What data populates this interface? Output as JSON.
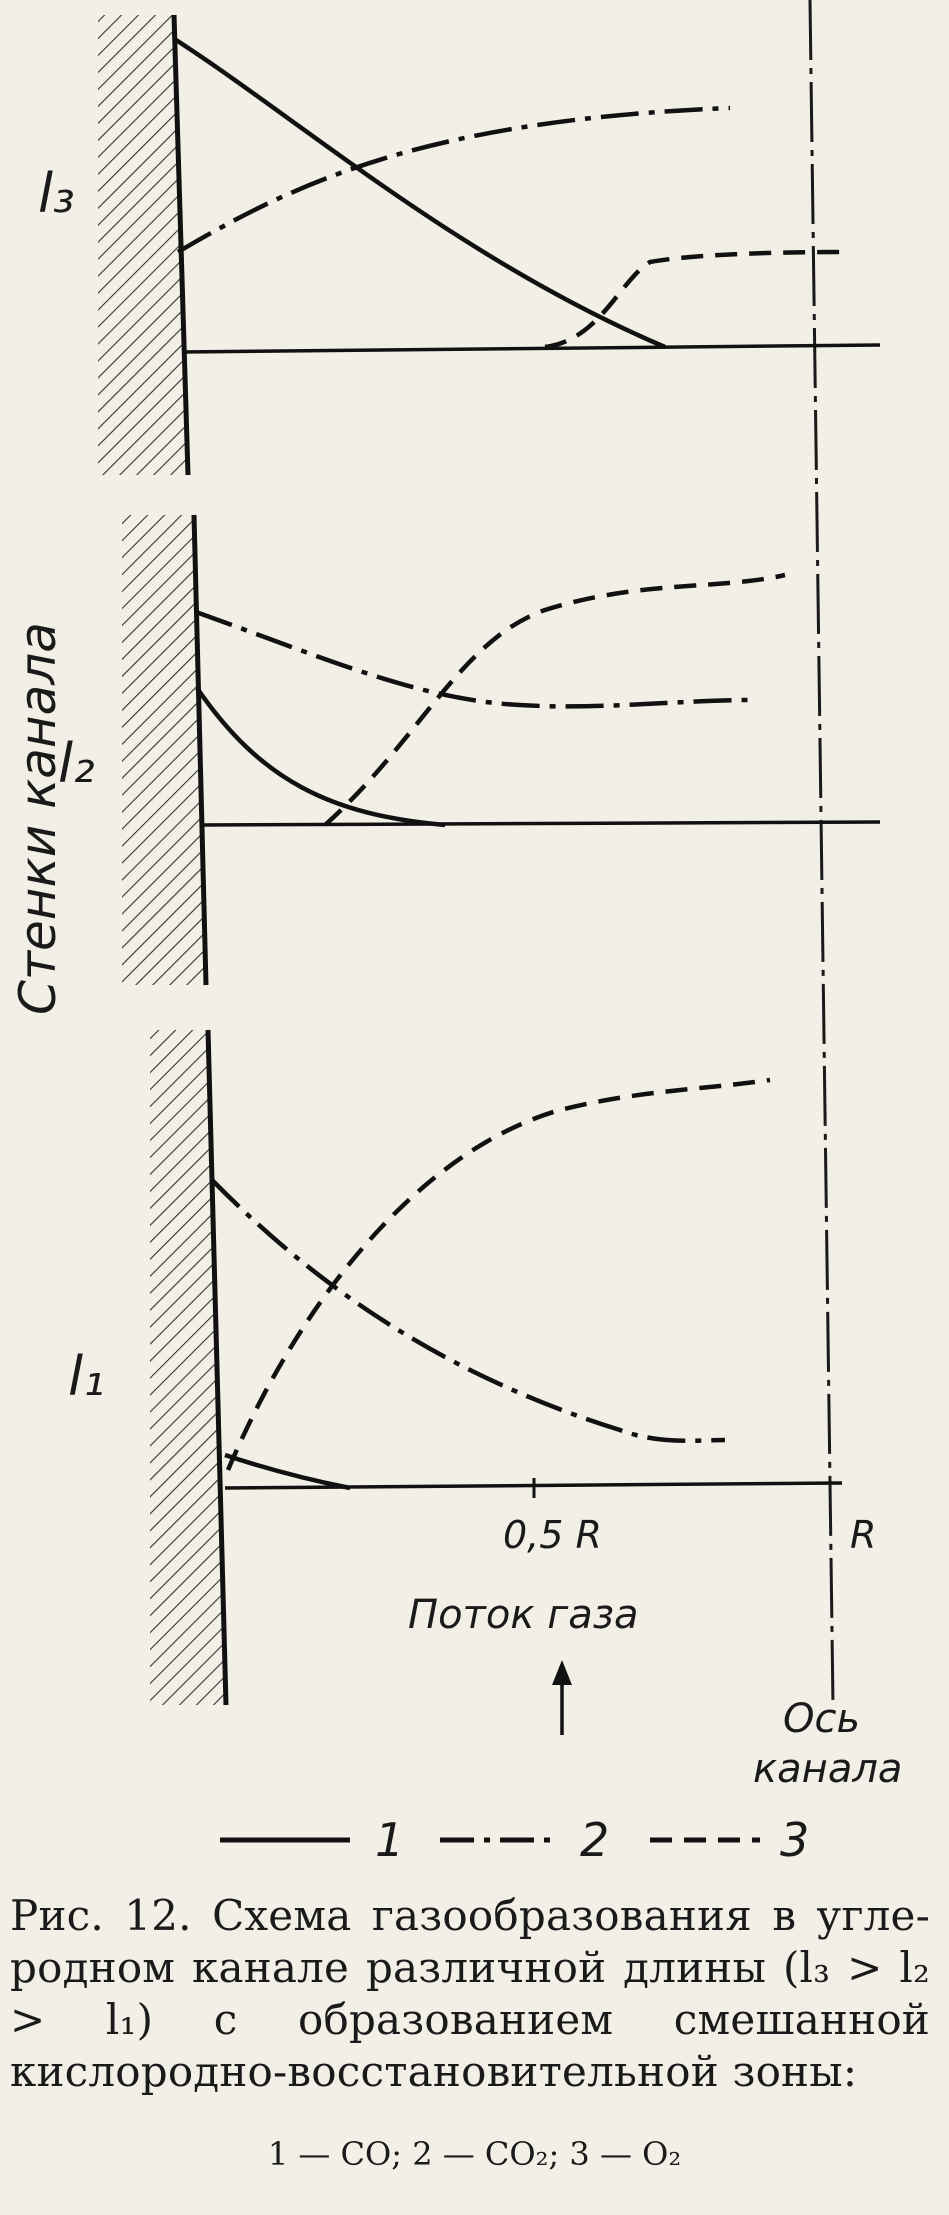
{
  "labels": {
    "wall_label": "Стенки канала",
    "l3": "l₃",
    "l2": "l₂",
    "l1": "l₁",
    "tick_half_r": "0,5 R",
    "tick_r": "R",
    "gas_flow": "Поток газа",
    "axis_line1": "Ось",
    "axis_line2": "канала"
  },
  "legend": [
    {
      "number": "1",
      "style": "solid"
    },
    {
      "number": "2",
      "style": "dash-dot"
    },
    {
      "number": "3",
      "style": "dashed"
    }
  ],
  "caption": {
    "text": "Рис. 12. Схема газообразования в угле-родном канале различной длины (l₃ > l₂ > l₁) с образованием смешанной кислородно-восстановительной зоны:",
    "legend_text": "1 — CO;  2 — CO₂;  3 — O₂"
  }
}
